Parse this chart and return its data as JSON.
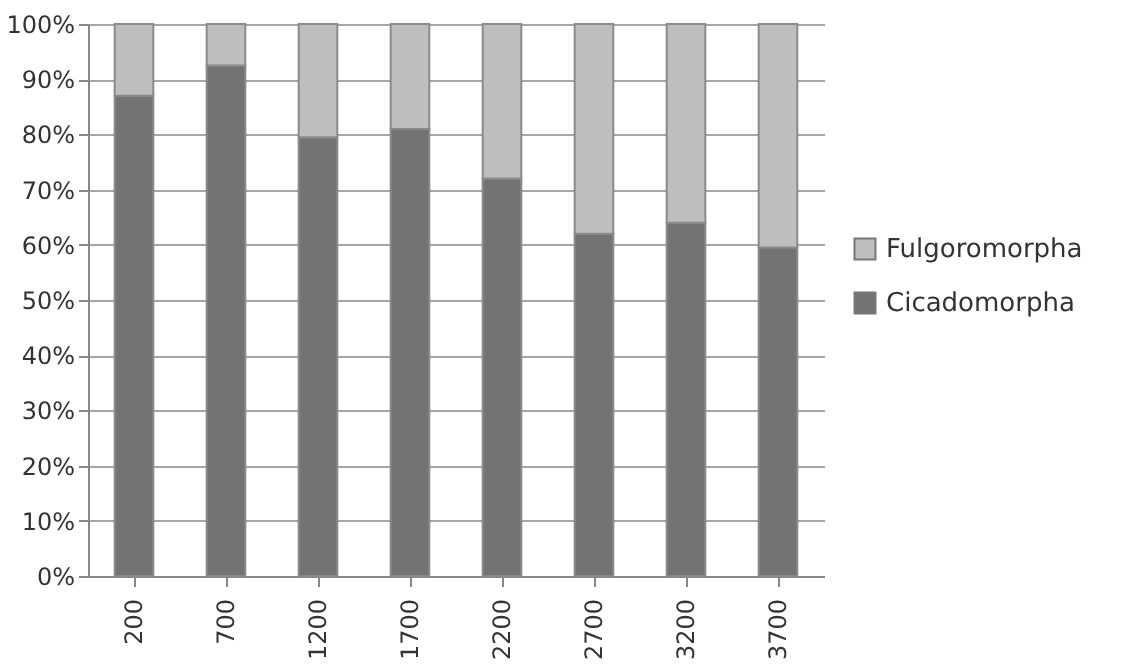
{
  "chart_data": {
    "type": "bar",
    "stacked": true,
    "categories": [
      "200",
      "700",
      "1200",
      "1700",
      "2200",
      "2700",
      "3200",
      "3700"
    ],
    "series": [
      {
        "name": "Cicadomorpha",
        "color": "#737373",
        "values": [
          87,
          92.5,
          79.5,
          81,
          72,
          62,
          64,
          59.5
        ]
      },
      {
        "name": "Fulgoromorpha",
        "color": "#bebebe",
        "values": [
          13,
          7.5,
          20.5,
          19,
          28,
          38,
          36,
          40.5
        ]
      }
    ],
    "ylim": [
      0,
      100
    ],
    "yticks": [
      {
        "value": 0,
        "label": "0%"
      },
      {
        "value": 10,
        "label": "10%"
      },
      {
        "value": 20,
        "label": "20%"
      },
      {
        "value": 30,
        "label": "30%"
      },
      {
        "value": 40,
        "label": "40%"
      },
      {
        "value": 50,
        "label": "50%"
      },
      {
        "value": 60,
        "label": "60%"
      },
      {
        "value": 70,
        "label": "70%"
      },
      {
        "value": 80,
        "label": "80%"
      },
      {
        "value": 90,
        "label": "90%"
      },
      {
        "value": 100,
        "label": "100%"
      }
    ],
    "grid": "y",
    "legend": "right"
  }
}
